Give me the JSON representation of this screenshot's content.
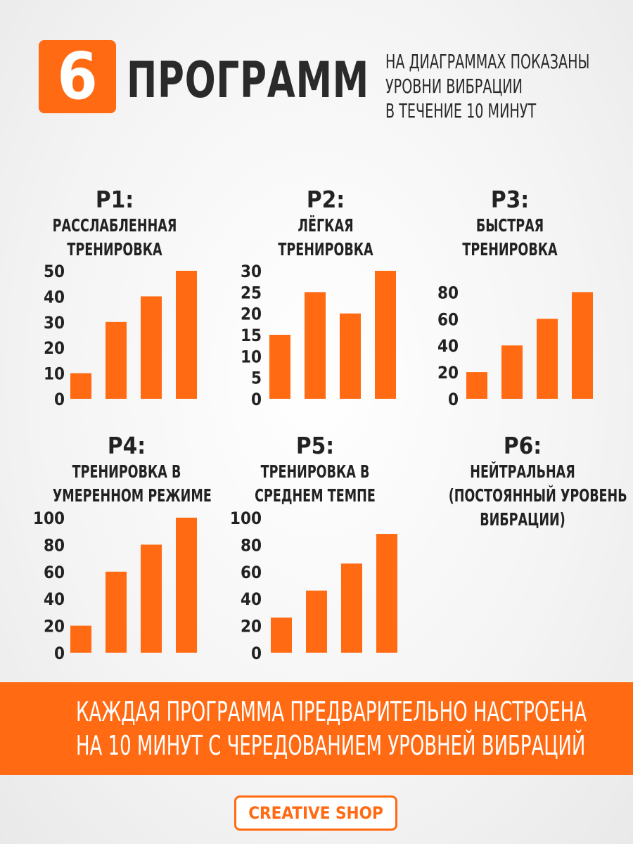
{
  "header": {
    "number": "6",
    "word": "ПРОГРАММ",
    "subtitle": [
      "НА ДИАГРАММАХ ПОКАЗАНЫ",
      "УРОВНИ ВИБРАЦИИ",
      "В ТЕЧЕНИЕ 10 МИНУТ"
    ]
  },
  "programs": [
    {
      "code": "P1:",
      "name": [
        "РАССЛАБЛЕННАЯ",
        "ТРЕНИРОВКА"
      ]
    },
    {
      "code": "P2:",
      "name": [
        "ЛЁГКАЯ",
        "ТРЕНИРОВКА"
      ]
    },
    {
      "code": "P3:",
      "name": [
        "БЫСТРАЯ",
        "ТРЕНИРОВКА"
      ]
    },
    {
      "code": "P4:",
      "name": [
        "ТРЕНИРОВКА В",
        "УМЕРЕННОМ РЕЖИМЕ"
      ]
    },
    {
      "code": "P5:",
      "name": [
        "ТРЕНИРОВКА В",
        "СРЕДНЕМ ТЕМПЕ"
      ]
    },
    {
      "code": "P6:",
      "name": [
        "НЕЙТРАЛЬНАЯ",
        "(ПОСТОЯННЫЙ УРОВЕНЬ",
        "ВИБРАЦИИ)"
      ]
    }
  ],
  "chart_data": [
    {
      "type": "bar",
      "program": "P1",
      "values": [
        10,
        30,
        40,
        50
      ],
      "yticks": [
        0,
        10,
        20,
        30,
        40,
        50
      ],
      "ylim": [
        0,
        50
      ],
      "bar_color": "#ff6a13"
    },
    {
      "type": "bar",
      "program": "P2",
      "values": [
        15,
        25,
        20,
        30
      ],
      "yticks": [
        0,
        5,
        10,
        15,
        20,
        25,
        30
      ],
      "ylim": [
        0,
        30
      ],
      "bar_color": "#ff6a13"
    },
    {
      "type": "bar",
      "program": "P3",
      "values": [
        20,
        40,
        60,
        80
      ],
      "yticks": [
        0,
        20,
        40,
        60,
        80
      ],
      "ylim": [
        0,
        96
      ],
      "bar_color": "#ff6a13"
    },
    {
      "type": "bar",
      "program": "P4",
      "values": [
        20,
        60,
        80,
        100
      ],
      "yticks": [
        0,
        20,
        40,
        60,
        80,
        100
      ],
      "ylim": [
        0,
        100
      ],
      "bar_color": "#ff6a13"
    },
    {
      "type": "bar",
      "program": "P5",
      "values": [
        26,
        46,
        66,
        88
      ],
      "yticks": [
        0,
        20,
        40,
        60,
        80,
        100
      ],
      "ylim": [
        0,
        100
      ],
      "bar_color": "#ff6a13"
    }
  ],
  "banner": {
    "lines": [
      "КАЖДАЯ ПРОГРАММА ПРЕДВАРИТЕЛЬНО НАСТРОЕНА",
      "НА 10 МИНУТ С ЧЕРЕДОВАНИЕМ УРОВНЕЙ ВИБРАЦИЙ"
    ]
  },
  "brand": {
    "label": "CREATIVE SHOP"
  },
  "colors": {
    "accent": "#ff6a13",
    "text": "#2a2a2a"
  }
}
